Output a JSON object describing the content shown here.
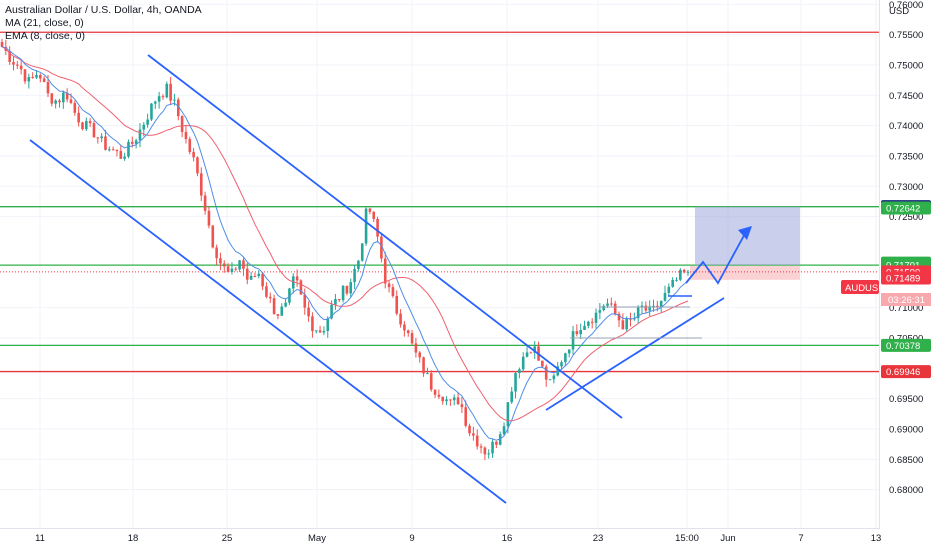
{
  "legend": {
    "symbol": "Australian Dollar / U.S. Dollar, 4h, OANDA",
    "ma": "MA (21, close, 0)",
    "ema": "EMA (8, close, 0)"
  },
  "colors": {
    "up": "#26a69a",
    "down": "#ef5350",
    "ma": "#f0606f",
    "ema": "#4f8ee8",
    "trend": "#2962ff",
    "support": "#2fb04a",
    "resistance": "#e8353b",
    "target_box": "#9fa8da",
    "price": "#f23645",
    "axis_text": "#131722",
    "grid": "#f0f3fa"
  },
  "chart_data": {
    "type": "candlestick",
    "title": "Australian Dollar / U.S. Dollar, 4h, OANDA",
    "price_axis_label": "USD",
    "y_range": [
      0.675,
      0.7607
    ],
    "y_ticks": [
      "0.68000",
      "0.68500",
      "0.69000",
      "0.69500",
      "0.70500",
      "0.71000",
      "0.72500",
      "0.73000",
      "0.73500",
      "0.74000",
      "0.74500",
      "0.75000",
      "0.75500",
      "0.76000"
    ],
    "x_ticks": [
      "11",
      "18",
      "25",
      "May",
      "9",
      "16",
      "23",
      "15:00",
      "Jun",
      "7",
      "13"
    ],
    "indicators": [
      "MA (21, close, 0)",
      "EMA (8, close, 0)"
    ],
    "horizontal_levels": [
      {
        "label": "0.75539",
        "value": 0.75539,
        "color": "#e8353b"
      },
      {
        "label": "0.72664",
        "value": 0.72664,
        "color": "#2fb04a"
      },
      {
        "label": "0.71701",
        "value": 0.71701,
        "color": "#2fb04a"
      },
      {
        "label": "0.70378",
        "value": 0.70378,
        "color": "#2fb04a"
      },
      {
        "label": "0.69946",
        "value": 0.69946,
        "color": "#e8353b"
      }
    ],
    "price_badges": [
      {
        "label": "0.72664",
        "value": 0.72664,
        "color": "#1a237e"
      },
      {
        "label": "0.72642",
        "value": 0.72642,
        "color": "#2fb04a"
      },
      {
        "label": "0.71734",
        "value": 0.71734,
        "color": "#2fb04a"
      },
      {
        "label": "0.71701",
        "value": 0.71701,
        "color": "#2fb04a"
      },
      {
        "label": "0.71590",
        "value": 0.7159,
        "color": "#f23645"
      },
      {
        "label": "0.71489",
        "value": 0.71489,
        "color": "#f23645"
      },
      {
        "label": "0.70378",
        "value": 0.70378,
        "color": "#2fb04a"
      },
      {
        "label": "0.69946",
        "value": 0.69946,
        "color": "#e8353b"
      }
    ],
    "current": {
      "symbol": "AUDUSD",
      "price": "0.71590",
      "countdown": "03:26:31"
    },
    "target_zone": {
      "from": 0.71701,
      "to": 0.72664
    },
    "close_path": [
      0.753,
      0.751,
      0.7495,
      0.747,
      0.749,
      0.745,
      0.744,
      0.7455,
      0.742,
      0.74,
      0.739,
      0.737,
      0.736,
      0.735,
      0.7365,
      0.739,
      0.742,
      0.745,
      0.746,
      0.743,
      0.738,
      0.734,
      0.728,
      0.721,
      0.717,
      0.715,
      0.718,
      0.714,
      0.716,
      0.712,
      0.709,
      0.71,
      0.715,
      0.71,
      0.707,
      0.706,
      0.71,
      0.712,
      0.714,
      0.718,
      0.727,
      0.722,
      0.714,
      0.71,
      0.707,
      0.703,
      0.7,
      0.697,
      0.696,
      0.694,
      0.695,
      0.69,
      0.688,
      0.686,
      0.688,
      0.692,
      0.699,
      0.702,
      0.704,
      0.7,
      0.697,
      0.701,
      0.704,
      0.707,
      0.708,
      0.709,
      0.711,
      0.709,
      0.707,
      0.708,
      0.71,
      0.709,
      0.711,
      0.713,
      0.715,
      0.7159
    ]
  }
}
